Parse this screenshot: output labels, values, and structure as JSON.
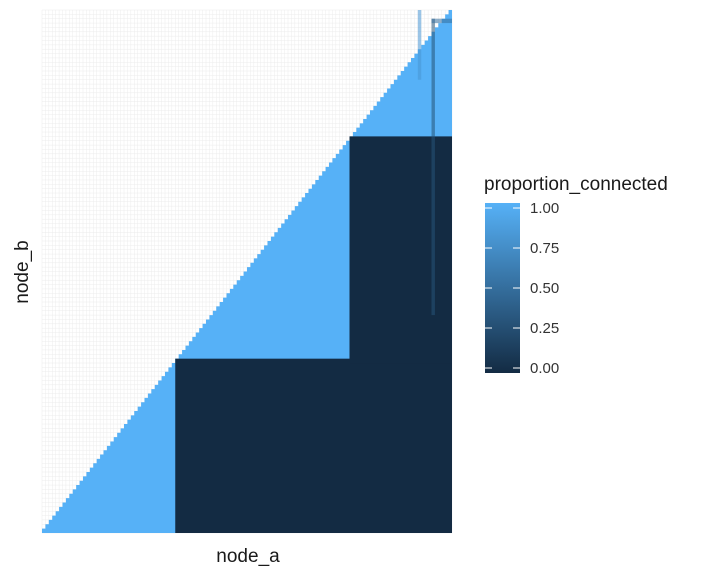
{
  "chart_data": {
    "type": "heatmap",
    "title": "",
    "xlabel": "node_a",
    "ylabel": "node_b",
    "n_nodes": 120,
    "grid": true,
    "legend": {
      "title": "proportion_connected",
      "position": "right",
      "ticks": [
        "0.00",
        "0.25",
        "0.50",
        "0.75",
        "1.00"
      ],
      "range": [
        0,
        1
      ],
      "low_color": "#132B43",
      "high_color": "#56B1F7"
    },
    "blocks": [
      {
        "node_a_range": [
          1,
          40
        ],
        "node_b_range": [
          1,
          40
        ],
        "value": 1.0,
        "note_fill": "lower triangle"
      },
      {
        "node_a_range": [
          40,
          91
        ],
        "node_b_range": [
          40,
          91
        ],
        "value": 1.0
      },
      {
        "node_a_range": [
          91,
          120
        ],
        "node_b_range": [
          91,
          120
        ],
        "value": 1.0
      },
      {
        "node_a_range": [
          40,
          120
        ],
        "node_b_range": [
          1,
          40
        ],
        "value": 0.0
      },
      {
        "node_a_range": [
          91,
          120
        ],
        "node_b_range": [
          40,
          91
        ],
        "value": 0.0
      }
    ],
    "faint_lines": [
      {
        "orientation": "vertical",
        "node_a": 115,
        "node_b_range": [
          51,
          118
        ],
        "value": 0.3
      },
      {
        "orientation": "horizontal",
        "node_b": 118,
        "node_a_range": [
          115,
          120
        ],
        "value": 0.5
      },
      {
        "orientation": "vertical",
        "node_a": 111,
        "node_b_range": [
          105,
          120
        ],
        "value": 0.8
      }
    ]
  }
}
